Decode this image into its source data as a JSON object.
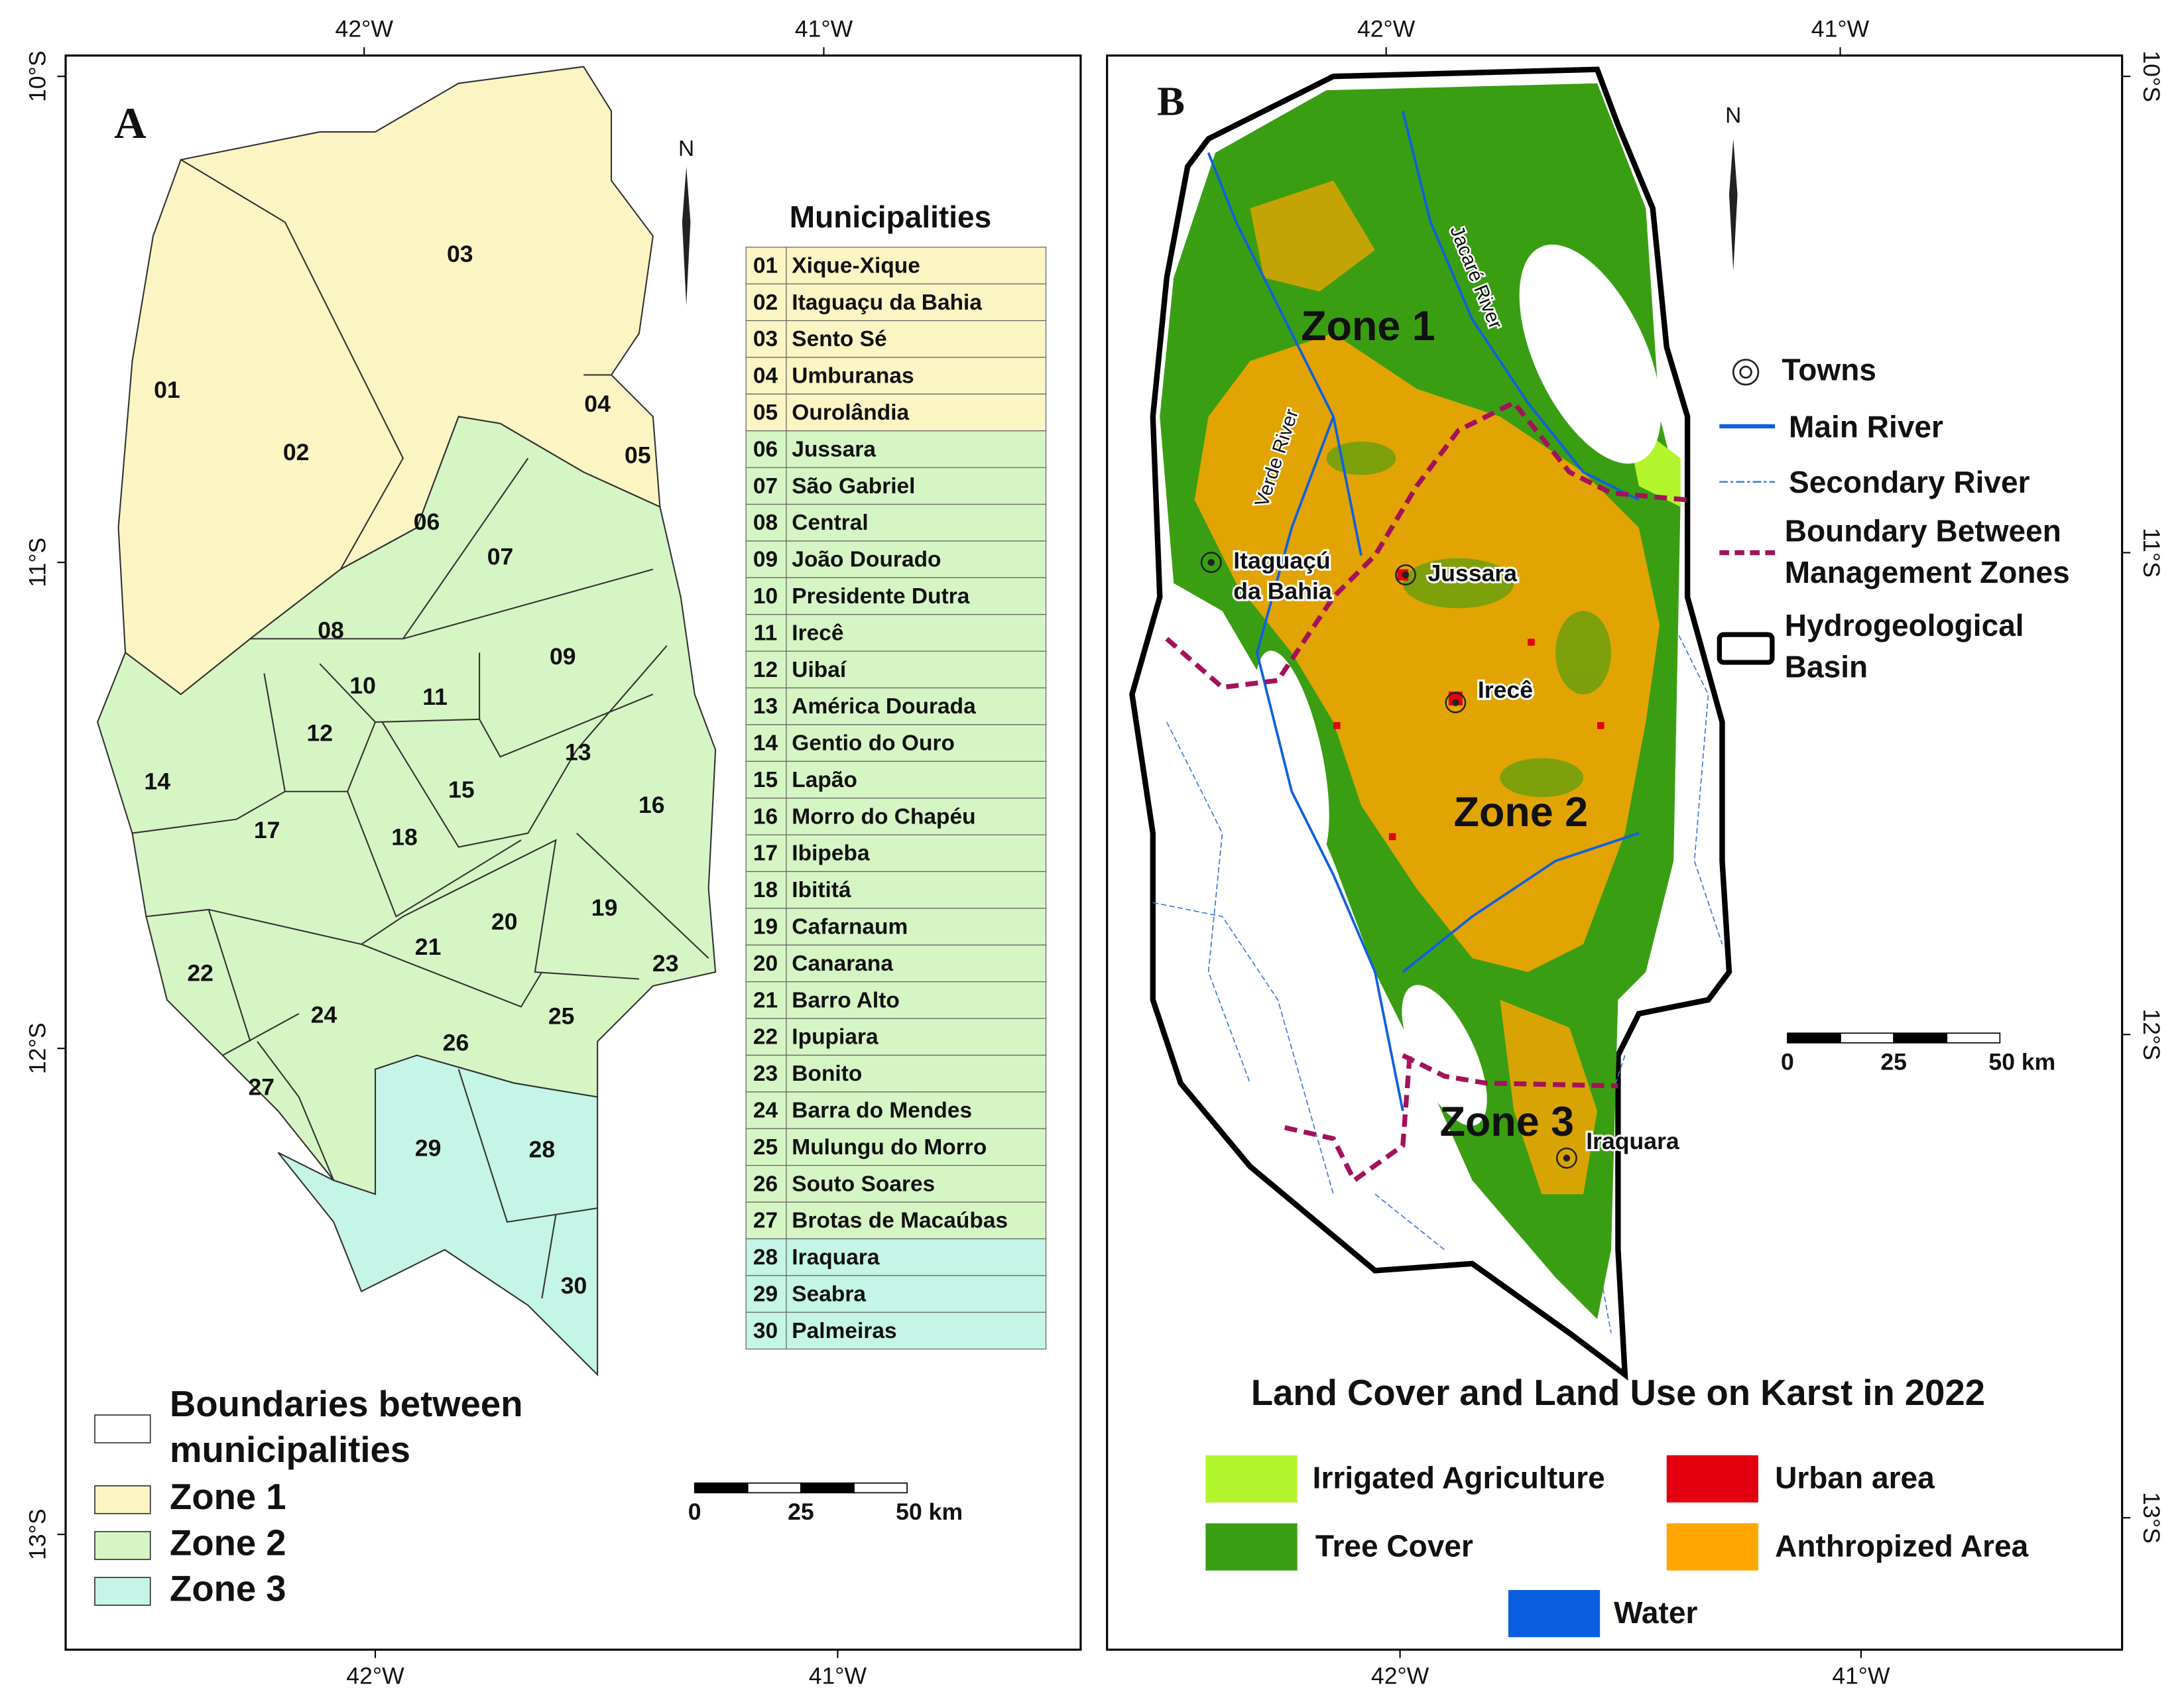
{
  "panel_a": {
    "letter": "A",
    "top_ticks": [
      "42°W",
      "41°W"
    ],
    "bottom_ticks": [
      "42°W",
      "41°W"
    ],
    "left_ticks": [
      "10°S",
      "11°S",
      "12°S",
      "13°S"
    ],
    "north": "N",
    "table": {
      "title": "Municipalities",
      "rows": [
        {
          "code": "01",
          "name": "Xique-Xique",
          "color": "#fbf5c3"
        },
        {
          "code": "02",
          "name": "Itaguaçu da Bahia",
          "color": "#fbf5c3"
        },
        {
          "code": "03",
          "name": "Sento Sé",
          "color": "#fbf5c3"
        },
        {
          "code": "04",
          "name": "Umburanas",
          "color": "#fbf5c3"
        },
        {
          "code": "05",
          "name": "Ourolândia",
          "color": "#fbf5c3"
        },
        {
          "code": "06",
          "name": "Jussara",
          "color": "#d6f5c4"
        },
        {
          "code": "07",
          "name": "São Gabriel",
          "color": "#d6f5c4"
        },
        {
          "code": "08",
          "name": "Central",
          "color": "#d6f5c4"
        },
        {
          "code": "09",
          "name": "João Dourado",
          "color": "#d6f5c4"
        },
        {
          "code": "10",
          "name": "Presidente Dutra",
          "color": "#d6f5c4"
        },
        {
          "code": "11",
          "name": "Irecê",
          "color": "#d6f5c4"
        },
        {
          "code": "12",
          "name": "Uibaí",
          "color": "#d6f5c4"
        },
        {
          "code": "13",
          "name": "América Dourada",
          "color": "#d6f5c4"
        },
        {
          "code": "14",
          "name": "Gentio do Ouro",
          "color": "#d6f5c4"
        },
        {
          "code": "15",
          "name": "Lapão",
          "color": "#d6f5c4"
        },
        {
          "code": "16",
          "name": "Morro do Chapéu",
          "color": "#d6f5c4"
        },
        {
          "code": "17",
          "name": "Ibipeba",
          "color": "#d6f5c4"
        },
        {
          "code": "18",
          "name": "Ibititá",
          "color": "#d6f5c4"
        },
        {
          "code": "19",
          "name": "Cafarnaum",
          "color": "#d6f5c4"
        },
        {
          "code": "20",
          "name": "Canarana",
          "color": "#d6f5c4"
        },
        {
          "code": "21",
          "name": "Barro Alto",
          "color": "#d6f5c4"
        },
        {
          "code": "22",
          "name": "Ipupiara",
          "color": "#d6f5c4"
        },
        {
          "code": "23",
          "name": "Bonito",
          "color": "#d6f5c4"
        },
        {
          "code": "24",
          "name": "Barra do Mendes",
          "color": "#d6f5c4"
        },
        {
          "code": "25",
          "name": "Mulungu do Morro",
          "color": "#d6f5c4"
        },
        {
          "code": "26",
          "name": "Souto Soares",
          "color": "#d6f5c4"
        },
        {
          "code": "27",
          "name": "Brotas de Macaúbas",
          "color": "#d6f5c4"
        },
        {
          "code": "28",
          "name": "Iraquara",
          "color": "#c4f5e6"
        },
        {
          "code": "29",
          "name": "Seabra",
          "color": "#c4f5e6"
        },
        {
          "code": "30",
          "name": "Palmeiras",
          "color": "#c4f5e6"
        }
      ]
    },
    "legend": [
      {
        "lines": [
          "Boundaries between",
          "municipalities"
        ],
        "color": "#ffffff"
      },
      {
        "lines": [
          "Zone 1"
        ],
        "color": "#fbf5c3"
      },
      {
        "lines": [
          "Zone 2"
        ],
        "color": "#d6f5c4"
      },
      {
        "lines": [
          "Zone 3"
        ],
        "color": "#c4f5e6"
      }
    ],
    "scale": [
      "0",
      "25",
      "50 km"
    ]
  },
  "panel_b": {
    "letter": "B",
    "top_ticks": [
      "42°W",
      "41°W"
    ],
    "bottom_ticks": [
      "42°W",
      "41°W"
    ],
    "right_ticks": [
      "10°S",
      "11°S",
      "12°S",
      "13°S"
    ],
    "north": "N",
    "zones": [
      "Zone 1",
      "Zone 2",
      "Zone 3"
    ],
    "towns": [
      [
        "Itaguaçú",
        "da Bahia"
      ],
      [
        "Jussara"
      ],
      [
        "Irecê"
      ],
      [
        "Iraquara"
      ]
    ],
    "rivers": [
      "Jacaré River",
      "Verde River"
    ],
    "legend": {
      "towns": "Towns",
      "main_river": "Main River",
      "secondary_river": "Secondary River",
      "boundary": [
        "Boundary Between",
        "Management Zones"
      ],
      "basin": [
        "Hydrogeological",
        "Basin"
      ]
    },
    "scale": [
      "0",
      "25",
      "50 km"
    ],
    "land_cover": {
      "title": "Land Cover and Land Use on Karst in 2022",
      "classes": [
        {
          "name": "Irrigated Agriculture",
          "color": "#b3f52c"
        },
        {
          "name": "Tree Cover",
          "color": "#3a9e12"
        },
        {
          "name": "Urban area",
          "color": "#e3000f"
        },
        {
          "name": "Anthropized Area",
          "color": "#ffa500"
        },
        {
          "name": "Water",
          "color": "#0a5fe0"
        }
      ]
    }
  }
}
